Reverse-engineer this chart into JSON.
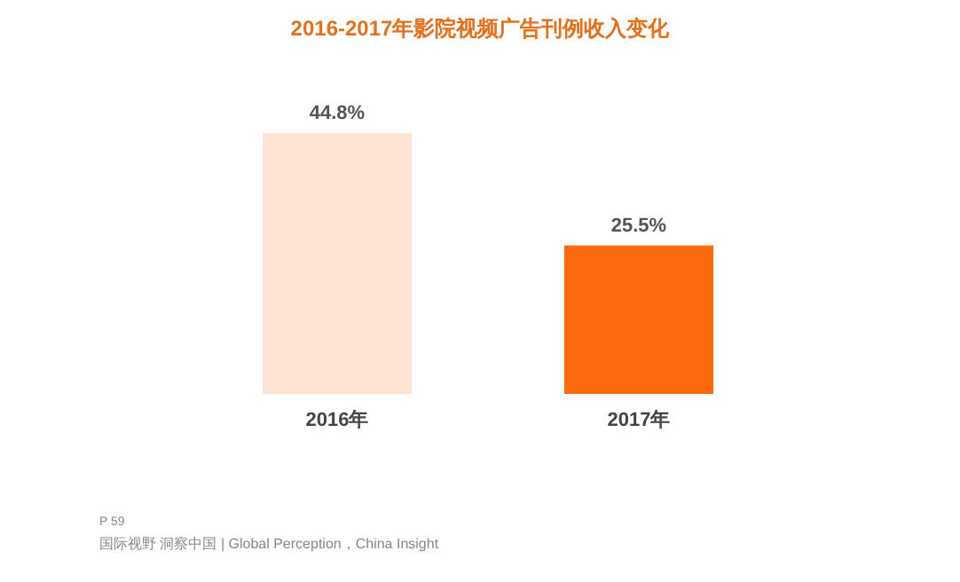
{
  "chart_data": {
    "type": "bar",
    "title": "2016-2017年影院视频广告刊例收入变化",
    "categories": [
      "2016年",
      "2017年"
    ],
    "values": [
      44.8,
      25.5
    ],
    "colors": [
      "#fde3d3",
      "#fd6a0e"
    ],
    "value_labels": [
      "44.8%",
      "25.5%"
    ],
    "annotations": [
      "P 59",
      "国际视野  洞察中国 | Global Perception，China Insight"
    ]
  }
}
